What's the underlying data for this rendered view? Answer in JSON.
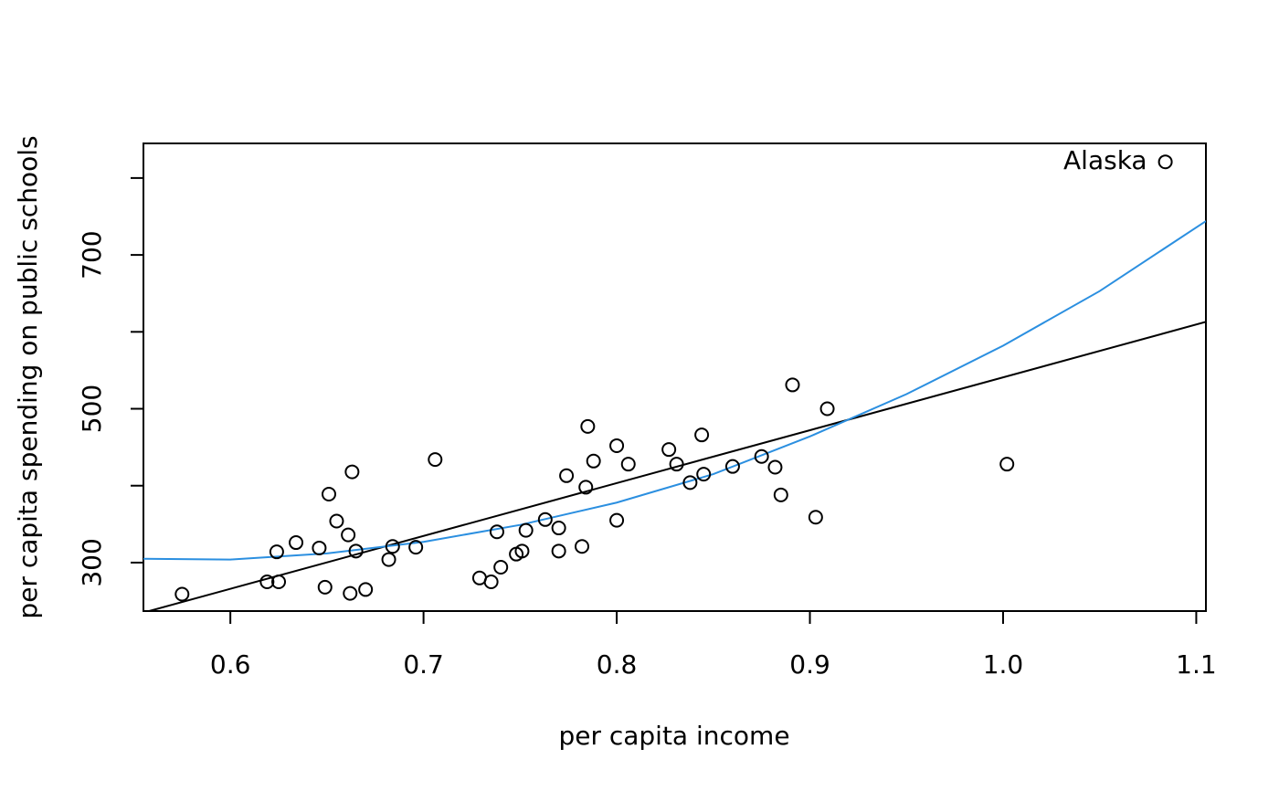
{
  "chart_data": {
    "type": "scatter",
    "xlabel": "per capita income",
    "ylabel": "per capita spending on public schools",
    "xlim": [
      0.555,
      1.105
    ],
    "ylim": [
      237,
      845
    ],
    "xticks": [
      0.6,
      0.7,
      0.8,
      0.9,
      1.0,
      1.1
    ],
    "xtick_labels": [
      "0.6",
      "0.7",
      "0.8",
      "0.9",
      "1.0",
      "1.1"
    ],
    "yticks": [
      300,
      400,
      500,
      600,
      700,
      800
    ],
    "ytick_labels": [
      "300",
      "",
      "500",
      "",
      "700",
      ""
    ],
    "grid": false,
    "colors": {
      "points": "#000000",
      "linear_fit": "#000000",
      "curve_fit": "#2b8fe0"
    },
    "points": [
      {
        "x": 0.575,
        "y": 259
      },
      {
        "x": 0.619,
        "y": 275
      },
      {
        "x": 0.624,
        "y": 314
      },
      {
        "x": 0.625,
        "y": 275
      },
      {
        "x": 0.634,
        "y": 326
      },
      {
        "x": 0.646,
        "y": 319
      },
      {
        "x": 0.649,
        "y": 268
      },
      {
        "x": 0.651,
        "y": 389
      },
      {
        "x": 0.655,
        "y": 354
      },
      {
        "x": 0.661,
        "y": 336
      },
      {
        "x": 0.662,
        "y": 260
      },
      {
        "x": 0.663,
        "y": 418
      },
      {
        "x": 0.665,
        "y": 315
      },
      {
        "x": 0.67,
        "y": 265
      },
      {
        "x": 0.682,
        "y": 304
      },
      {
        "x": 0.684,
        "y": 321
      },
      {
        "x": 0.696,
        "y": 320
      },
      {
        "x": 0.706,
        "y": 434
      },
      {
        "x": 0.729,
        "y": 280
      },
      {
        "x": 0.735,
        "y": 275
      },
      {
        "x": 0.738,
        "y": 340
      },
      {
        "x": 0.74,
        "y": 294
      },
      {
        "x": 0.748,
        "y": 311
      },
      {
        "x": 0.751,
        "y": 315
      },
      {
        "x": 0.753,
        "y": 342
      },
      {
        "x": 0.763,
        "y": 356
      },
      {
        "x": 0.77,
        "y": 345
      },
      {
        "x": 0.77,
        "y": 315
      },
      {
        "x": 0.774,
        "y": 413
      },
      {
        "x": 0.782,
        "y": 321
      },
      {
        "x": 0.784,
        "y": 398
      },
      {
        "x": 0.785,
        "y": 477
      },
      {
        "x": 0.788,
        "y": 432
      },
      {
        "x": 0.8,
        "y": 452
      },
      {
        "x": 0.8,
        "y": 355
      },
      {
        "x": 0.806,
        "y": 428
      },
      {
        "x": 0.827,
        "y": 447
      },
      {
        "x": 0.831,
        "y": 428
      },
      {
        "x": 0.838,
        "y": 404
      },
      {
        "x": 0.844,
        "y": 466
      },
      {
        "x": 0.845,
        "y": 415
      },
      {
        "x": 0.86,
        "y": 425
      },
      {
        "x": 0.875,
        "y": 438
      },
      {
        "x": 0.882,
        "y": 424
      },
      {
        "x": 0.885,
        "y": 388
      },
      {
        "x": 0.891,
        "y": 531
      },
      {
        "x": 0.903,
        "y": 359
      },
      {
        "x": 0.909,
        "y": 500
      },
      {
        "x": 1.002,
        "y": 428
      },
      {
        "x": 1.084,
        "y": 821
      }
    ],
    "linear_fit": {
      "x": [
        0.555,
        1.105
      ],
      "y": [
        235,
        613
      ]
    },
    "curve_fit": {
      "x": [
        0.555,
        0.6,
        0.65,
        0.7,
        0.75,
        0.8,
        0.85,
        0.9,
        0.95,
        1.0,
        1.05,
        1.105
      ],
      "y": [
        305,
        304,
        312,
        327,
        349,
        378,
        415,
        464,
        519,
        582,
        653,
        744
      ]
    },
    "annotations": [
      {
        "label": "Alaska",
        "x": 1.084,
        "y": 821
      }
    ]
  }
}
